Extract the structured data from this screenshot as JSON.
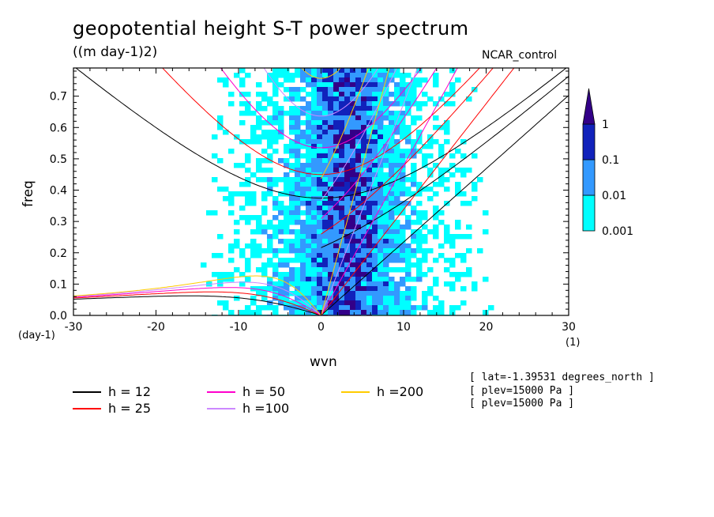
{
  "chart_data": {
    "type": "heatmap",
    "title": "geopotential height S-T power spectrum",
    "subtitle": "((m day-1)2)",
    "dataset_label": "NCAR_control",
    "xlabel": "wvn",
    "ylabel": "freq",
    "x_unit_left": "(day-1)",
    "x_unit_right": "(1)",
    "xlim": [
      -30,
      30
    ],
    "ylim": [
      0,
      0.79
    ],
    "x_ticks": [
      -30,
      -20,
      -10,
      0,
      10,
      20,
      30
    ],
    "x_tick_labels": [
      "-30",
      "-20",
      "-10",
      "0",
      "10",
      "20",
      "30"
    ],
    "y_ticks": [
      0,
      0.1,
      0.2,
      0.3,
      0.4,
      0.5,
      0.6,
      0.7
    ],
    "y_tick_labels": [
      "0.0",
      "0.1",
      "0.2",
      "0.3",
      "0.4",
      "0.5",
      "0.6",
      "0.7"
    ],
    "colorbar": {
      "levels": [
        "0.001",
        "0.01",
        "0.1",
        "1"
      ],
      "colors": [
        "#00ffff",
        "#3399ff",
        "#1122bb",
        "#330088"
      ]
    },
    "fill_colors": {
      "low": "#00ffff",
      "mid": "#3399ff",
      "high": "#1122bb",
      "top": "#330088"
    },
    "dispersion_curves": [
      {
        "name": "h = 12",
        "h": 12,
        "color": "#000000"
      },
      {
        "name": "h = 25",
        "h": 25,
        "color": "#ff0000"
      },
      {
        "name": "h = 50",
        "h": 50,
        "color": "#ff00cc"
      },
      {
        "name": "h =100",
        "h": 100,
        "color": "#cc88ff"
      },
      {
        "name": "h =200",
        "h": 200,
        "color": "#ffcc00"
      }
    ],
    "grid": false,
    "legend_position": "bottom-left"
  },
  "meta": {
    "lines": [
      "[ lat=-1.39531 degrees_north ]",
      "[ plev=15000 Pa ]",
      "[ plev=15000 Pa ]"
    ]
  }
}
